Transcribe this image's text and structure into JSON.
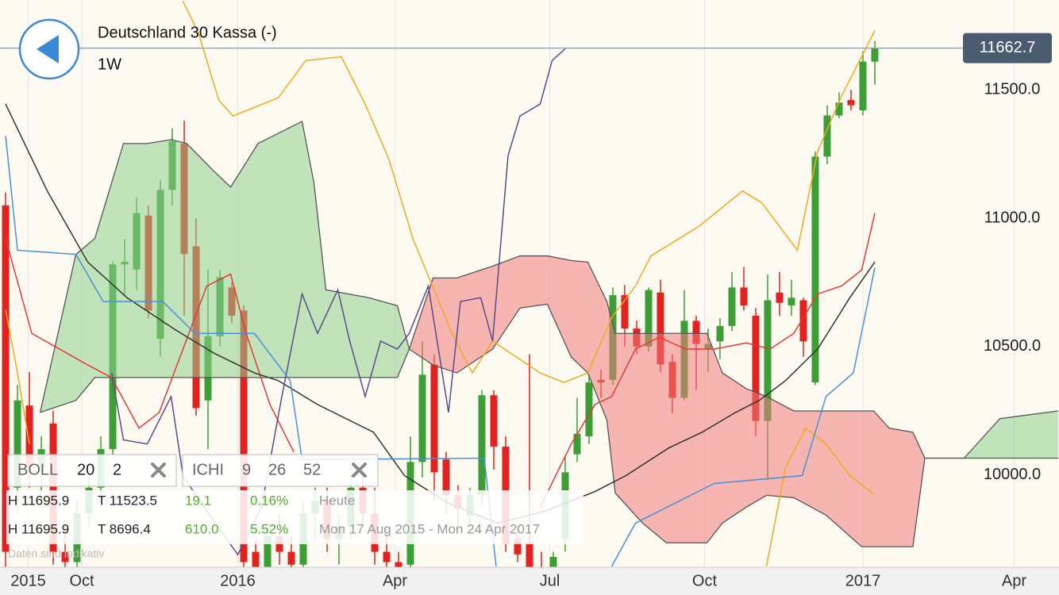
{
  "header": {
    "title": "Deutschland 30 Kassa (-)",
    "interval": "1W"
  },
  "indicators": [
    {
      "name": "BOLL",
      "params": [
        "20",
        "2"
      ]
    },
    {
      "name": "ICHI",
      "params": [
        "9",
        "26",
        "52"
      ]
    }
  ],
  "stats": [
    {
      "high": "H 11695.9",
      "low": "T 11523.5",
      "change": "19.1",
      "percent": "0.16%",
      "period": "Heute"
    },
    {
      "high": "H 11695.9",
      "low": "T 8696.4",
      "change": "610.0",
      "percent": "5.52%",
      "period": "Mon 17 Aug 2015 - Mon 24 Apr 2017"
    }
  ],
  "footnote": "Daten sind indikativ",
  "chart_data": {
    "type": "candlestick",
    "xlim": [
      -0.47,
      88.47
    ],
    "ylim": [
      9640,
      11850
    ],
    "xticks": [
      {
        "value": 1.9,
        "label": "2015"
      },
      {
        "value": 6.4,
        "label": "Oct"
      },
      {
        "value": 19.5,
        "label": "2016"
      },
      {
        "value": 32.7,
        "label": "Apr"
      },
      {
        "value": 45.7,
        "label": "Jul"
      },
      {
        "value": 58.7,
        "label": "Oct"
      },
      {
        "value": 72,
        "label": "2017"
      },
      {
        "value": 84.7,
        "label": "Apr"
      }
    ],
    "yticks": [
      {
        "value": 10000,
        "label": "10000.0"
      },
      {
        "value": 10500,
        "label": "10500.0"
      },
      {
        "value": 11000,
        "label": "11000.0"
      },
      {
        "value": 11500,
        "label": "11500.0"
      }
    ],
    "up_color": "#3d9e35",
    "down_color": "#e3211e",
    "candles": {
      "x": [
        0,
        1,
        2,
        3,
        4,
        5,
        6,
        7,
        8,
        9,
        10,
        11,
        12,
        13,
        14,
        15,
        16,
        17,
        18,
        19,
        20,
        21,
        22,
        23,
        24,
        25,
        26,
        27,
        28,
        29,
        30,
        31,
        32,
        33,
        34,
        35,
        36,
        37,
        38,
        39,
        40,
        41,
        42,
        43,
        44,
        45,
        46,
        47,
        48,
        49,
        50,
        51,
        52,
        53,
        54,
        55,
        56,
        57,
        58,
        59,
        60,
        61,
        62,
        63,
        64,
        65,
        66,
        67,
        68,
        69,
        70,
        71,
        72,
        73
      ],
      "open": [
        11050,
        9950,
        10270,
        10030,
        10200,
        9700,
        9660,
        9850,
        9950,
        10100,
        10820,
        10800,
        11010,
        10530,
        11110,
        11290,
        10890,
        10290,
        10540,
        10730,
        10640,
        9700,
        9620,
        9760,
        9700,
        9650,
        9850,
        9900,
        9750,
        9800,
        9950,
        9850,
        9700,
        9660,
        9650,
        10050,
        10430,
        10060,
        9920,
        9840,
        9920,
        10310,
        10110,
        9750,
        9735,
        9640,
        9620,
        9750,
        10080,
        10150,
        10370,
        10370,
        10700,
        10570,
        10500,
        10710,
        10440,
        10300,
        10600,
        10490,
        10520,
        10580,
        10730,
        10620,
        10210,
        10710,
        10660,
        10680,
        10360,
        11240,
        11400,
        11460,
        11420,
        11610
      ],
      "high": [
        11100,
        10350,
        10400,
        10150,
        10250,
        9800,
        9900,
        10000,
        10150,
        10830,
        10920,
        11080,
        11050,
        11150,
        11350,
        11380,
        11000,
        10800,
        10800,
        10750,
        10660,
        9750,
        9800,
        9850,
        9760,
        9900,
        9950,
        9950,
        9850,
        10000,
        10000,
        9950,
        9800,
        9700,
        10150,
        10520,
        10470,
        10090,
        9960,
        9950,
        10330,
        10330,
        10150,
        9800,
        10470,
        9700,
        9700,
        10070,
        10300,
        10390,
        10410,
        10730,
        10740,
        10600,
        10730,
        10760,
        10470,
        10720,
        10620,
        10570,
        10610,
        10790,
        10810,
        10650,
        10780,
        10790,
        10760,
        10690,
        11260,
        11440,
        11490,
        11500,
        11650,
        11690
      ],
      "low": [
        9600,
        9850,
        9950,
        9900,
        9650,
        9620,
        9640,
        9800,
        9900,
        10080,
        10700,
        10720,
        10610,
        10460,
        11050,
        10620,
        10230,
        10100,
        10500,
        10590,
        9640,
        9600,
        9600,
        9650,
        9600,
        9620,
        9750,
        9700,
        9650,
        9750,
        9800,
        9650,
        9620,
        9600,
        9640,
        9990,
        9900,
        9850,
        9800,
        9800,
        9880,
        10020,
        9700,
        9660,
        9630,
        9600,
        9600,
        9700,
        10050,
        10120,
        10300,
        10350,
        10500,
        10470,
        10480,
        10400,
        10240,
        10290,
        10330,
        10400,
        10450,
        10560,
        10640,
        10150,
        9980,
        10620,
        10620,
        10460,
        10350,
        11210,
        11390,
        11420,
        11400,
        11520
      ],
      "close": [
        9700,
        10290,
        10030,
        10100,
        9700,
        9660,
        9850,
        9950,
        10100,
        10820,
        10830,
        11020,
        10640,
        11110,
        11300,
        10860,
        10260,
        10540,
        10770,
        10620,
        9660,
        9620,
        9760,
        9700,
        9650,
        9850,
        9900,
        9750,
        9800,
        9950,
        9850,
        9700,
        9660,
        9640,
        10050,
        10390,
        10010,
        9920,
        9870,
        9920,
        10310,
        10110,
        9730,
        9690,
        9640,
        9620,
        9680,
        10010,
        10160,
        10360,
        10360,
        10700,
        10570,
        10500,
        10720,
        10430,
        10300,
        10600,
        10510,
        10510,
        10580,
        10730,
        10660,
        10210,
        10680,
        10670,
        10690,
        10520,
        11240,
        11400,
        11450,
        11440,
        11610,
        11662.7
      ]
    },
    "cloud": {
      "up_color": "#8fd08c",
      "down_color": "#f07b7b",
      "edge_color": "#555555",
      "x": [
        2.9,
        5.9,
        7.5,
        9.9,
        11.9,
        13.9,
        15.2,
        17.5,
        18.9,
        21.2,
        24.9,
        25.9,
        26.9,
        30.5,
        32.9,
        33.9,
        35.9,
        37.9,
        40.9,
        43.2,
        45.5,
        47.5,
        48.9,
        50.5,
        51.2,
        53.5,
        55.5,
        58.9,
        60.2,
        62.2,
        63.9,
        66.2,
        68.9,
        71.9,
        72.9,
        74.2,
        76.2,
        77.2,
        80.5,
        83.5,
        88.4
      ],
      "span_a": [
        10243,
        10859,
        10921,
        11291,
        11291,
        11306,
        11291,
        11183,
        11121,
        11291,
        11377,
        11137,
        10721,
        10690,
        10659,
        10490,
        10428,
        10397,
        10490,
        10650,
        10665,
        10459,
        10397,
        10213,
        9929,
        9812,
        9735,
        9735,
        9812,
        9874,
        9920,
        9911,
        9843,
        9720,
        9720,
        9720,
        9720,
        10065,
        10065,
        10219,
        10249
      ],
      "span_b": [
        10243,
        10290,
        10379,
        10379,
        10379,
        10379,
        10379,
        10379,
        10379,
        10379,
        10379,
        10379,
        10379,
        10379,
        10379,
        10490,
        10767,
        10767,
        10813,
        10853,
        10853,
        10835,
        10829,
        10675,
        10551,
        10551,
        10551,
        10551,
        10397,
        10336,
        10305,
        10249,
        10249,
        10249,
        10249,
        10182,
        10166,
        10065,
        10065,
        10065,
        10065
      ]
    },
    "lines": [
      {
        "color": "#f2a91c",
        "x": [
          14.9,
          16.2,
          17.9,
          19.1,
          22.9,
          25.2,
          28.2,
          30.2,
          32.2,
          34.2,
          37.5,
          39.2,
          40.9,
          44.9,
          46.9,
          48.9,
          50.9,
          52.9,
          54.2,
          58.2,
          61.9,
          63.5,
          66.5,
          68.2,
          70.2,
          73
        ],
        "values": [
          11845,
          11722,
          11460,
          11398,
          11469,
          11614,
          11629,
          11444,
          11229,
          10921,
          10551,
          10397,
          10521,
          10397,
          10360,
          10397,
          10613,
          10736,
          10853,
          10967,
          11106,
          11060,
          10875,
          11260,
          11475,
          11731
        ]
      },
      {
        "color": "#f2a91c",
        "x": [
          0,
          1,
          2,
          30,
          63.9,
          65.5,
          67.2,
          68.9,
          70.9,
          72.9
        ],
        "values": [
          10644,
          10397,
          10120,
          null,
          9643,
          10028,
          10182,
          10120,
          9997,
          9926
        ]
      },
      {
        "color": "#e53935",
        "x": [
          0,
          2.2,
          6.9,
          8.9,
          11.2,
          12.9,
          14.9,
          16.9,
          18.9,
          20.2,
          22.2,
          24.2,
          30,
          44.9,
          47.5,
          49.5,
          50.9,
          52.9,
          54.9,
          57.1,
          59.5,
          62.2,
          64.2,
          66.2,
          68.2,
          70.2,
          71.9,
          73
        ],
        "values": [
          10921,
          10551,
          10428,
          10379,
          10182,
          10243,
          10490,
          10736,
          10782,
          10551,
          10274,
          10089,
          null,
          9874,
          10120,
          10274,
          10305,
          10490,
          10536,
          10490,
          10490,
          10514,
          10490,
          10551,
          10705,
          10736,
          10798,
          11019
        ]
      },
      {
        "color": "#333333",
        "x": [
          0,
          3.5,
          6.9,
          10.2,
          14.2,
          17.5,
          20.9,
          22.9,
          26.2,
          30.9,
          33.5,
          37.2,
          41.3,
          45.3,
          49.5,
          52.1,
          55.7,
          58.5,
          61.3,
          63.3,
          65.5,
          68.2,
          70.9,
          73
        ],
        "values": [
          11445,
          11106,
          10829,
          10690,
          10567,
          10474,
          10397,
          10367,
          10274,
          10166,
          9997,
          9889,
          9812,
          9858,
          9935,
          9997,
          10105,
          10166,
          10243,
          10290,
          10367,
          10490,
          10690,
          10829
        ]
      },
      {
        "color": "#5b4b8a",
        "x": [
          8.9,
          9.9,
          11.9,
          13.9,
          14.9,
          16.2,
          19.5,
          21.5,
          23.2,
          24.9,
          26.2,
          27.9,
          28.9,
          30.2,
          31.5,
          32.9,
          33.9,
          35.5,
          37.2,
          38.2,
          39.9,
          40.9,
          42.2,
          43.2,
          44.9,
          45.9,
          47
        ],
        "values": [
          10397,
          10136,
          10120,
          10305,
          9997,
          9905,
          9689,
          9874,
          10305,
          10705,
          10551,
          10721,
          10521,
          10305,
          10521,
          10490,
          10551,
          10736,
          10243,
          10675,
          10690,
          10521,
          11244,
          11398,
          11445,
          11614,
          11660
        ]
      },
      {
        "color": "#4a90d9",
        "x": [
          0,
          1,
          5.9,
          8.2,
          13.2,
          15.9,
          20.9,
          23.9,
          24.9,
          40.2,
          41.2,
          46,
          50.9,
          52.9,
          59.5,
          66.9,
          68.9,
          71.2,
          73
        ],
        "values": [
          11321,
          10875,
          10859,
          10675,
          10675,
          10551,
          10551,
          10367,
          10059,
          10065,
          9643,
          null,
          9643,
          9812,
          9966,
          9997,
          10305,
          10397,
          10807
        ]
      }
    ]
  }
}
